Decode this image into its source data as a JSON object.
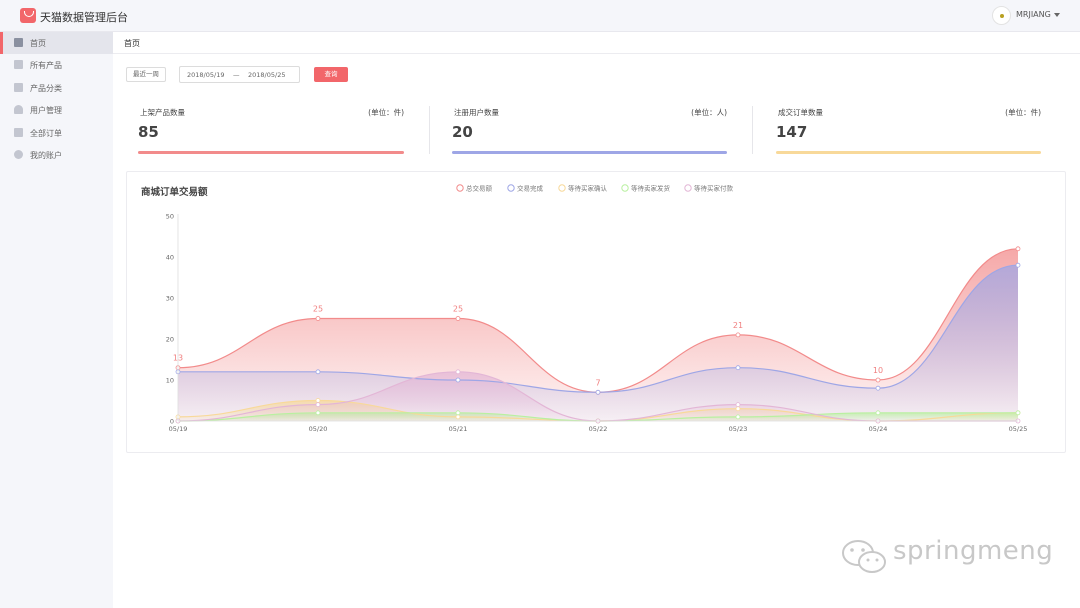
{
  "app": {
    "title": "天猫数据管理后台"
  },
  "user": {
    "name": "MRJIANG"
  },
  "sidebar": {
    "items": [
      {
        "label": "首页",
        "icon": "home-icon",
        "active": true
      },
      {
        "label": "所有产品",
        "icon": "product-icon",
        "active": false
      },
      {
        "label": "产品分类",
        "icon": "category-icon",
        "active": false
      },
      {
        "label": "用户管理",
        "icon": "user-icon",
        "active": false
      },
      {
        "label": "全部订单",
        "icon": "order-icon",
        "active": false
      },
      {
        "label": "我的账户",
        "icon": "gear-icon",
        "active": false
      }
    ]
  },
  "breadcrumb": "首页",
  "filter": {
    "range_label": "最近一周",
    "start_date": "2018/05/19",
    "separator": "—",
    "end_date": "2018/05/25",
    "query_label": "查询"
  },
  "stats": [
    {
      "title": "上架产品数量",
      "unit": "(单位：件)",
      "value": "85",
      "color": "#f28b8b"
    },
    {
      "title": "注册用户数量",
      "unit": "(单位：人)",
      "value": "20",
      "color": "#9ea6e6"
    },
    {
      "title": "成交订单数量",
      "unit": "(单位：件)",
      "value": "147",
      "color": "#f8d99a"
    }
  ],
  "chart": {
    "title": "商城订单交易额"
  },
  "chart_data": {
    "type": "area",
    "title": "商城订单交易额",
    "categories": [
      "05/19",
      "05/20",
      "05/21",
      "05/22",
      "05/23",
      "05/24",
      "05/25"
    ],
    "ylim": [
      0,
      50
    ],
    "yticks": [
      0,
      10,
      20,
      30,
      40,
      50
    ],
    "grid": false,
    "legend_position": "top",
    "series": [
      {
        "name": "总交易额",
        "color": "#f28b8b",
        "values": [
          13,
          25,
          25,
          7,
          21,
          10,
          42
        ],
        "labels": [
          "13",
          "25",
          "25",
          "7",
          "21",
          "10",
          ""
        ]
      },
      {
        "name": "交易完成",
        "color": "#9ea6e6",
        "values": [
          12,
          12,
          10,
          7,
          13,
          8,
          38
        ]
      },
      {
        "name": "等待买家确认",
        "color": "#f8d99a",
        "values": [
          1,
          5,
          1,
          0,
          3,
          0,
          2
        ]
      },
      {
        "name": "等待卖家发货",
        "color": "#b9f0a0",
        "values": [
          0,
          2,
          2,
          0,
          1,
          2,
          2
        ]
      },
      {
        "name": "等待买家付款",
        "color": "#e3b6d6",
        "values": [
          0,
          4,
          12,
          0,
          4,
          0,
          0
        ]
      }
    ]
  },
  "watermark": "springmeng",
  "colors": {
    "accent": "#f2666a"
  }
}
